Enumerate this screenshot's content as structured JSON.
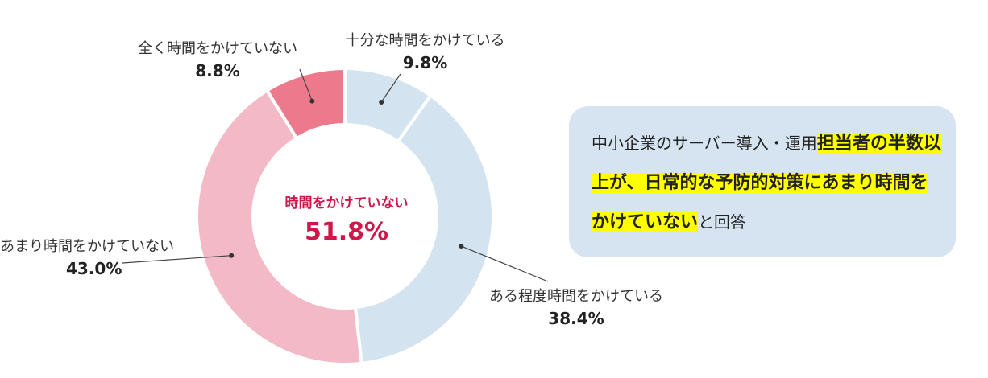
{
  "chart_data": {
    "type": "donut",
    "slices": [
      {
        "label": "十分な時間をかけている",
        "value": 9.8,
        "display": "9.8%",
        "color": "#d3e3ef"
      },
      {
        "label": "ある程度時間をかけている",
        "value": 38.4,
        "display": "38.4%",
        "color": "#d3e3ef"
      },
      {
        "label": "あまり時間をかけていない",
        "value": 43.0,
        "display": "43.0%",
        "color": "#f4b9c7"
      },
      {
        "label": "全く時間をかけていない",
        "value": 8.8,
        "display": "8.8%",
        "color": "#ec7a8c"
      }
    ],
    "center_label": "時間をかけていない",
    "center_value": "51.8%"
  },
  "callout": {
    "text_plain_1": "中小企業のサーバー導入・運用",
    "text_highlight": "担当者の半数以上が、日常的な予防的対策にあまり時間をかけていない",
    "text_plain_2": "と回答"
  },
  "colors": {
    "accent": "#d0174a",
    "callout_bg": "#d5e4f0",
    "highlight": "#ffff00"
  }
}
